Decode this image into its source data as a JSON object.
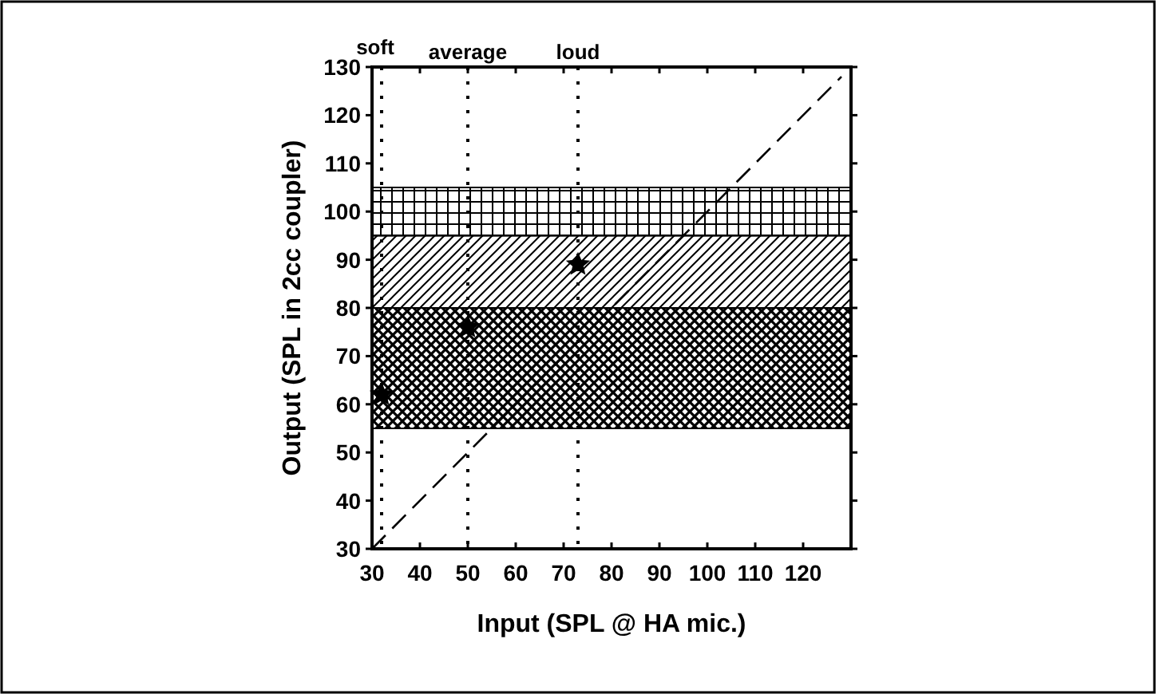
{
  "chart_data": {
    "type": "scatter",
    "xlabel": "Input (SPL @ HA mic.)",
    "ylabel": "Output (SPL in 2cc coupler)",
    "xlim": [
      30,
      130
    ],
    "ylim": [
      30,
      130
    ],
    "xticks": [
      30,
      40,
      50,
      60,
      70,
      80,
      90,
      100,
      110,
      120
    ],
    "yticks": [
      30,
      40,
      50,
      60,
      70,
      80,
      90,
      100,
      110,
      120,
      130
    ],
    "grid": false,
    "series": [
      {
        "type": "line",
        "color": "#000000",
        "line_style": "dashed",
        "marker": "none",
        "x": [
          30,
          128
        ],
        "values": [
          30,
          128
        ]
      },
      {
        "color": "#000000",
        "marker": "star",
        "x": [
          32,
          50,
          73
        ],
        "values": [
          62,
          76,
          89
        ]
      }
    ],
    "ref_lines": [
      {
        "axis": "x",
        "value": 32,
        "label": "soft",
        "line_style": "dotted"
      },
      {
        "axis": "x",
        "value": 50,
        "label": "average",
        "line_style": "dotted"
      },
      {
        "axis": "x",
        "value": 73,
        "label": "loud",
        "line_style": "dotted"
      }
    ],
    "bands": [
      {
        "axis": "y",
        "from": 55,
        "to": 80,
        "color": "#000000"
      },
      {
        "axis": "y",
        "from": 80,
        "to": 95,
        "color": "#000000"
      },
      {
        "axis": "y",
        "from": 95,
        "to": 105,
        "color": "#000000"
      }
    ]
  }
}
